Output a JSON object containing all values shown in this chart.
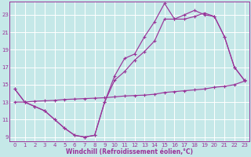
{
  "xlabel": "Windchill (Refroidissement éolien,°C)",
  "bg_color": "#c5e8e8",
  "grid_color": "#aed8d8",
  "line_color": "#993399",
  "spine_color": "#993399",
  "xlim": [
    -0.5,
    23.5
  ],
  "ylim": [
    8.5,
    24.5
  ],
  "xticks": [
    0,
    1,
    2,
    3,
    4,
    5,
    6,
    7,
    8,
    9,
    10,
    11,
    12,
    13,
    14,
    15,
    16,
    17,
    18,
    19,
    20,
    21,
    22,
    23
  ],
  "yticks": [
    9,
    11,
    13,
    15,
    17,
    19,
    21,
    23
  ],
  "line1_x": [
    0,
    1,
    2,
    3,
    4,
    5,
    6,
    7,
    8,
    9,
    10,
    11,
    12,
    13,
    14,
    15,
    16,
    17,
    18,
    19,
    20,
    21,
    22,
    23
  ],
  "line1_y": [
    14.5,
    13.0,
    12.5,
    12.0,
    11.0,
    10.0,
    9.2,
    9.0,
    9.2,
    13.0,
    16.0,
    18.0,
    18.5,
    20.5,
    22.2,
    24.3,
    22.5,
    22.5,
    22.8,
    23.2,
    22.8,
    20.5,
    17.0,
    15.5
  ],
  "line2_x": [
    0,
    1,
    2,
    3,
    4,
    5,
    6,
    7,
    8,
    9,
    10,
    11,
    12,
    13,
    14,
    15,
    16,
    17,
    18,
    19,
    20,
    21,
    22,
    23
  ],
  "line2_y": [
    14.5,
    13.0,
    12.5,
    12.0,
    11.0,
    10.0,
    9.2,
    9.0,
    9.2,
    13.0,
    15.5,
    16.5,
    17.8,
    18.8,
    20.0,
    22.5,
    22.5,
    23.0,
    23.5,
    23.0,
    22.8,
    20.5,
    17.0,
    15.5
  ],
  "line3_x": [
    0,
    1,
    2,
    3,
    4,
    5,
    6,
    7,
    8,
    9,
    10,
    11,
    12,
    13,
    14,
    15,
    16,
    17,
    18,
    19,
    20,
    21,
    22,
    23
  ],
  "line3_y": [
    13.0,
    13.0,
    13.1,
    13.15,
    13.2,
    13.3,
    13.35,
    13.4,
    13.45,
    13.5,
    13.6,
    13.7,
    13.75,
    13.8,
    13.9,
    14.1,
    14.2,
    14.3,
    14.4,
    14.5,
    14.7,
    14.8,
    15.0,
    15.4
  ],
  "tick_fontsize": 5.0,
  "xlabel_fontsize": 5.5,
  "marker_size": 3.0,
  "line_width": 0.85
}
